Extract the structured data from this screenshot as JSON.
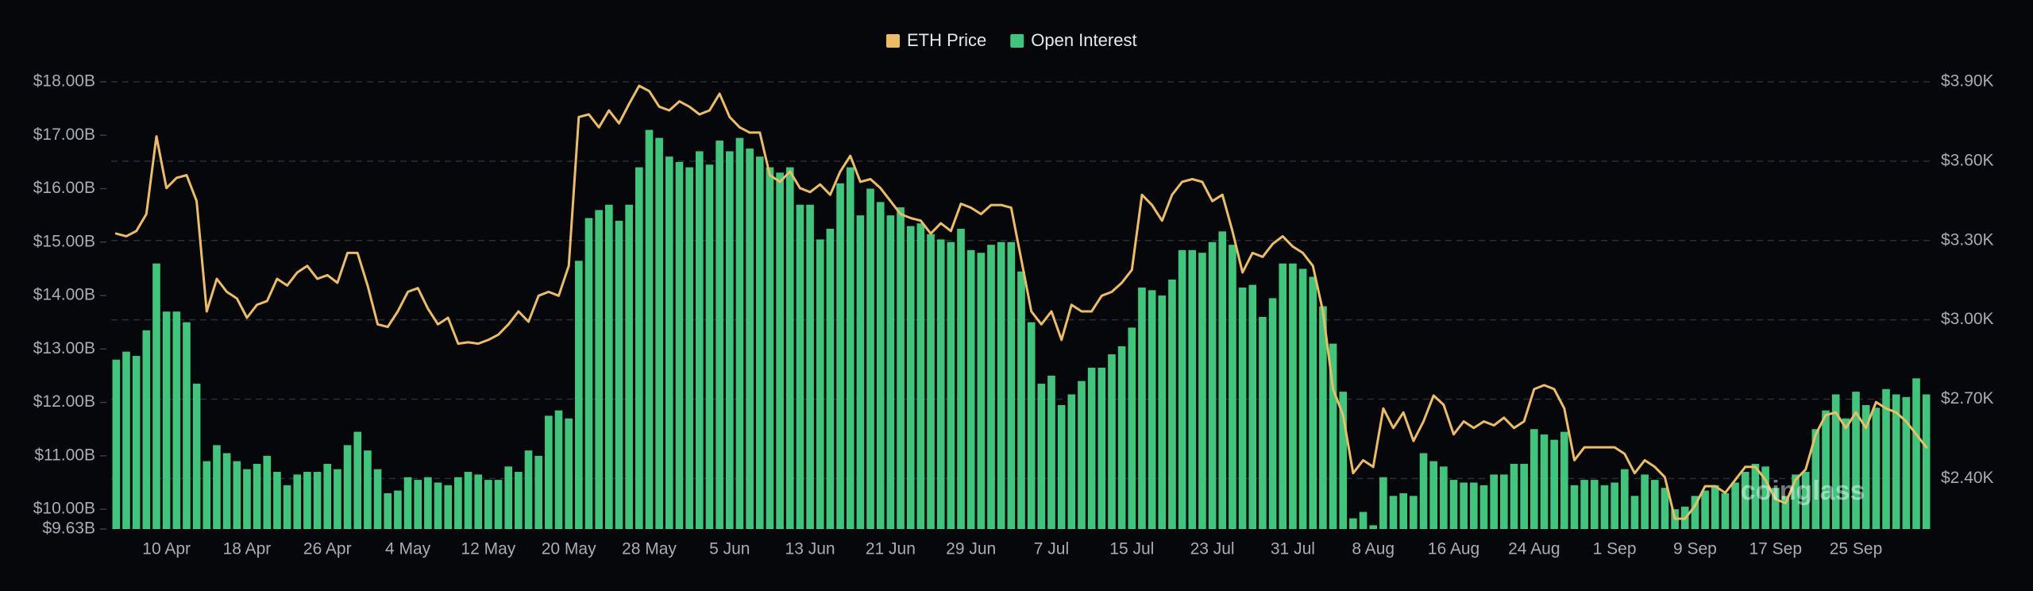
{
  "chart_data": {
    "type": "bar",
    "watermark": "coinglass",
    "categories": [
      null,
      null,
      null,
      null,
      null,
      "10 Apr",
      null,
      null,
      null,
      null,
      null,
      null,
      null,
      "18 Apr",
      null,
      null,
      null,
      null,
      null,
      null,
      null,
      "26 Apr",
      null,
      null,
      null,
      null,
      null,
      null,
      null,
      "4 May",
      null,
      null,
      null,
      null,
      null,
      null,
      null,
      "12 May",
      null,
      null,
      null,
      null,
      null,
      null,
      null,
      "20 May",
      null,
      null,
      null,
      null,
      null,
      null,
      null,
      "28 May",
      null,
      null,
      null,
      null,
      null,
      null,
      null,
      "5 Jun",
      null,
      null,
      null,
      null,
      null,
      null,
      null,
      "13 Jun",
      null,
      null,
      null,
      null,
      null,
      null,
      null,
      "21 Jun",
      null,
      null,
      null,
      null,
      null,
      null,
      null,
      "29 Jun",
      null,
      null,
      null,
      null,
      null,
      null,
      null,
      "7 Jul",
      null,
      null,
      null,
      null,
      null,
      null,
      null,
      "15 Jul",
      null,
      null,
      null,
      null,
      null,
      null,
      null,
      "23 Jul",
      null,
      null,
      null,
      null,
      null,
      null,
      null,
      "31 Jul",
      null,
      null,
      null,
      null,
      null,
      null,
      null,
      "8 Aug",
      null,
      null,
      null,
      null,
      null,
      null,
      null,
      "16 Aug",
      null,
      null,
      null,
      null,
      null,
      null,
      null,
      "24 Aug",
      null,
      null,
      null,
      null,
      null,
      null,
      null,
      "1 Sep",
      null,
      null,
      null,
      null,
      null,
      null,
      null,
      "9 Sep",
      null,
      null,
      null,
      null,
      null,
      null,
      null,
      "17 Sep",
      null,
      null,
      null,
      null,
      null,
      null,
      null,
      "25 Sep",
      null,
      null,
      null,
      null,
      null,
      null,
      null
    ],
    "series": [
      {
        "name": "ETH Price",
        "type": "line",
        "axis": "y2",
        "color": "#ecbd62",
        "values": [
          3326,
          3316,
          3336,
          3400,
          3694,
          3498,
          3537,
          3547,
          3449,
          3032,
          3155,
          3106,
          3081,
          3008,
          3057,
          3071,
          3155,
          3130,
          3179,
          3204,
          3155,
          3169,
          3140,
          3253,
          3253,
          3130,
          2983,
          2973,
          3032,
          3106,
          3120,
          3042,
          2983,
          3008,
          2910,
          2915,
          2910,
          2924,
          2944,
          2983,
          3032,
          2993,
          3091,
          3106,
          3091,
          3204,
          3767,
          3777,
          3728,
          3792,
          3743,
          3816,
          3885,
          3865,
          3806,
          3792,
          3826,
          3806,
          3777,
          3792,
          3855,
          3767,
          3728,
          3708,
          3708,
          3547,
          3522,
          3561,
          3498,
          3483,
          3512,
          3473,
          3561,
          3620,
          3522,
          3532,
          3498,
          3449,
          3400,
          3385,
          3375,
          3326,
          3365,
          3336,
          3439,
          3424,
          3400,
          3434,
          3434,
          3424,
          3228,
          3032,
          2983,
          3032,
          2924,
          3057,
          3032,
          3032,
          3091,
          3106,
          3140,
          3189,
          3473,
          3434,
          3375,
          3473,
          3522,
          3532,
          3522,
          3449,
          3473,
          3336,
          3179,
          3253,
          3238,
          3287,
          3316,
          3277,
          3253,
          3204,
          3032,
          2738,
          2640,
          2420,
          2469,
          2444,
          2665,
          2591,
          2650,
          2542,
          2616,
          2714,
          2679,
          2567,
          2616,
          2591,
          2616,
          2601,
          2630,
          2591,
          2616,
          2738,
          2753,
          2738,
          2665,
          2469,
          2518,
          2518,
          2518,
          2518,
          2493,
          2420,
          2469,
          2444,
          2405,
          2248,
          2248,
          2297,
          2371,
          2371,
          2346,
          2395,
          2444,
          2444,
          2395,
          2322,
          2307,
          2395,
          2434,
          2567,
          2640,
          2650,
          2591,
          2650,
          2591,
          2689,
          2665,
          2650,
          2616,
          2567,
          2518
        ]
      },
      {
        "name": "Open Interest",
        "type": "bar",
        "axis": "y",
        "color": "#3fc67c",
        "values": [
          12.8,
          12.95,
          12.87,
          13.35,
          14.6,
          13.7,
          13.7,
          13.5,
          12.35,
          10.9,
          11.2,
          11.05,
          10.9,
          10.75,
          10.85,
          11.0,
          10.7,
          10.45,
          10.65,
          10.7,
          10.7,
          10.85,
          10.75,
          11.2,
          11.45,
          11.1,
          10.75,
          10.3,
          10.35,
          10.6,
          10.55,
          10.6,
          10.5,
          10.45,
          10.6,
          10.7,
          10.65,
          10.55,
          10.55,
          10.8,
          10.7,
          11.1,
          11.0,
          11.75,
          11.85,
          11.7,
          14.65,
          15.45,
          15.6,
          15.7,
          15.4,
          15.7,
          16.4,
          17.1,
          16.95,
          16.6,
          16.5,
          16.4,
          16.7,
          16.45,
          16.9,
          16.7,
          16.95,
          16.75,
          16.6,
          16.4,
          16.3,
          16.4,
          15.7,
          15.7,
          15.05,
          15.25,
          16.1,
          16.4,
          15.5,
          16.0,
          15.75,
          15.5,
          15.65,
          15.3,
          15.35,
          15.15,
          15.05,
          15.0,
          15.25,
          14.85,
          14.8,
          14.95,
          15.0,
          15.0,
          14.45,
          13.5,
          12.35,
          12.5,
          11.95,
          12.15,
          12.4,
          12.65,
          12.65,
          12.9,
          13.05,
          13.4,
          14.15,
          14.1,
          14.0,
          14.3,
          14.85,
          14.85,
          14.8,
          15.0,
          15.2,
          14.95,
          14.15,
          14.2,
          13.6,
          13.95,
          14.6,
          14.6,
          14.5,
          14.35,
          13.8,
          13.1,
          12.2,
          9.83,
          9.95,
          9.7,
          10.6,
          10.25,
          10.3,
          10.25,
          11.05,
          10.9,
          10.8,
          10.55,
          10.5,
          10.5,
          10.45,
          10.65,
          10.65,
          10.85,
          10.85,
          11.5,
          11.4,
          11.3,
          11.45,
          10.45,
          10.55,
          10.55,
          10.45,
          10.5,
          10.75,
          10.25,
          10.65,
          10.55,
          10.4,
          10.0,
          10.05,
          10.25,
          10.35,
          10.45,
          10.3,
          10.5,
          10.7,
          10.85,
          10.8,
          10.4,
          10.25,
          10.65,
          10.7,
          11.5,
          11.85,
          12.15,
          11.7,
          12.2,
          11.95,
          11.9,
          12.25,
          12.15,
          12.1,
          12.45,
          12.15
        ]
      }
    ],
    "ylim": [
      9.63,
      18.0
    ],
    "yticks": [
      {
        "value": 9.63,
        "label": "$9.63B"
      },
      {
        "value": 10,
        "label": "$10.00B"
      },
      {
        "value": 11,
        "label": "$11.00B"
      },
      {
        "value": 12,
        "label": "$12.00B"
      },
      {
        "value": 13,
        "label": "$13.00B"
      },
      {
        "value": 14,
        "label": "$14.00B"
      },
      {
        "value": 15,
        "label": "$15.00B"
      },
      {
        "value": 16,
        "label": "$16.00B"
      },
      {
        "value": 17,
        "label": "$17.00B"
      },
      {
        "value": 18,
        "label": "$18.00B"
      }
    ],
    "y2lim": [
      2209,
      3900
    ],
    "y2ticks": [
      {
        "value": 2400,
        "label": "$2.40K"
      },
      {
        "value": 2700,
        "label": "$2.70K"
      },
      {
        "value": 3000,
        "label": "$3.00K"
      },
      {
        "value": 3300,
        "label": "$3.30K"
      },
      {
        "value": 3600,
        "label": "$3.60K"
      },
      {
        "value": 3900,
        "label": "$3.90K"
      }
    ],
    "grid": true,
    "legend": "top"
  }
}
